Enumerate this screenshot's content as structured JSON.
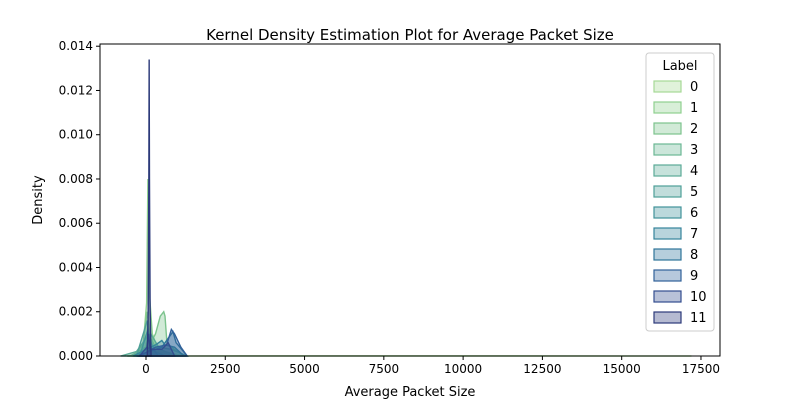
{
  "chart_data": {
    "type": "area",
    "title": "Kernel Density Estimation Plot for Average Packet Size",
    "xlabel": "Average Packet Size",
    "ylabel": "Density",
    "xlim": [
      -1450,
      18100
    ],
    "ylim": [
      0,
      0.0141
    ],
    "xticks": [
      0,
      2500,
      5000,
      7500,
      10000,
      12500,
      15000,
      17500
    ],
    "xtick_labels": [
      "0",
      "2500",
      "5000",
      "7500",
      "10000",
      "12500",
      "15000",
      "17500"
    ],
    "yticks": [
      0,
      0.002,
      0.004,
      0.006,
      0.008,
      0.01,
      0.012,
      0.014
    ],
    "ytick_labels": [
      "0.000",
      "0.002",
      "0.004",
      "0.006",
      "0.008",
      "0.010",
      "0.012",
      "0.014"
    ],
    "grid": false,
    "legend": {
      "title": "Label",
      "placement": "top-right"
    },
    "series": [
      {
        "name": "0",
        "color": "#a6d996",
        "points": [
          [
            -600,
            0
          ],
          [
            -200,
            0.0001
          ],
          [
            0,
            0.0004
          ],
          [
            60,
            0.0016
          ],
          [
            100,
            0.0012
          ],
          [
            300,
            0.0003
          ],
          [
            600,
            0.0002
          ],
          [
            1200,
            0
          ],
          [
            3000,
            1e-05
          ],
          [
            10000,
            1e-05
          ],
          [
            17200,
            0
          ]
        ]
      },
      {
        "name": "1",
        "color": "#8fd08f",
        "points": [
          [
            -400,
            0
          ],
          [
            -100,
            0.0003
          ],
          [
            20,
            0.0024
          ],
          [
            60,
            0.008
          ],
          [
            100,
            0.003
          ],
          [
            200,
            0.001
          ],
          [
            400,
            0.0002
          ],
          [
            900,
            0
          ]
        ]
      },
      {
        "name": "2",
        "color": "#7cc38d",
        "points": [
          [
            -400,
            0
          ],
          [
            -100,
            0.0005
          ],
          [
            40,
            0.002
          ],
          [
            150,
            0.0006
          ],
          [
            300,
            0.001
          ],
          [
            450,
            0.0018
          ],
          [
            560,
            0.002
          ],
          [
            600,
            0.0018
          ],
          [
            660,
            0.0006
          ],
          [
            800,
            0.0004
          ],
          [
            1200,
            0
          ]
        ]
      },
      {
        "name": "3",
        "color": "#6bb794",
        "points": [
          [
            -500,
            0
          ],
          [
            0,
            0.0004
          ],
          [
            100,
            0.0009
          ],
          [
            300,
            0.0004
          ],
          [
            600,
            0.0002
          ],
          [
            1000,
            0
          ]
        ]
      },
      {
        "name": "4",
        "color": "#5bab97",
        "points": [
          [
            -800,
            0
          ],
          [
            -300,
            0.0002
          ],
          [
            0,
            0.0008
          ],
          [
            150,
            0.001
          ],
          [
            400,
            0.0004
          ],
          [
            800,
            0.0003
          ],
          [
            1300,
            0
          ]
        ]
      },
      {
        "name": "5",
        "color": "#4e9f98",
        "points": [
          [
            -300,
            0
          ],
          [
            40,
            0.0016
          ],
          [
            100,
            0.0008
          ],
          [
            300,
            0.0002
          ],
          [
            600,
            0
          ]
        ]
      },
      {
        "name": "6",
        "color": "#40929a",
        "points": [
          [
            -200,
            0
          ],
          [
            60,
            0.0012
          ],
          [
            160,
            0.0004
          ],
          [
            400,
            0
          ]
        ]
      },
      {
        "name": "7",
        "color": "#35849b",
        "points": [
          [
            -400,
            0
          ],
          [
            0,
            0.0003
          ],
          [
            300,
            0.0005
          ],
          [
            500,
            0.0007
          ],
          [
            600,
            0.0005
          ],
          [
            900,
            0.0004
          ],
          [
            1200,
            0
          ]
        ]
      },
      {
        "name": "8",
        "color": "#2f749a",
        "points": [
          [
            -300,
            0
          ],
          [
            100,
            0.0002
          ],
          [
            500,
            0.0004
          ],
          [
            700,
            0.0008
          ],
          [
            850,
            0.0011
          ],
          [
            950,
            0.0006
          ],
          [
            1300,
            0
          ]
        ]
      },
      {
        "name": "9",
        "color": "#31619a",
        "points": [
          [
            -200,
            0
          ],
          [
            300,
            0.0004
          ],
          [
            650,
            0.0005
          ],
          [
            800,
            0.0012
          ],
          [
            900,
            0.001
          ],
          [
            1100,
            0.0004
          ],
          [
            1300,
            0
          ]
        ]
      },
      {
        "name": "10",
        "color": "#334d8f",
        "points": [
          [
            -200,
            0
          ],
          [
            30,
            0.0004
          ],
          [
            80,
            0.001
          ],
          [
            130,
            0.0003
          ],
          [
            500,
            0.0003
          ],
          [
            700,
            0.0006
          ],
          [
            900,
            0
          ]
        ]
      },
      {
        "name": "11",
        "color": "#2c3a7a",
        "points": [
          [
            40,
            0
          ],
          [
            70,
            0.002
          ],
          [
            90,
            0.008
          ],
          [
            100,
            0.0134
          ],
          [
            110,
            0.008
          ],
          [
            130,
            0.0022
          ],
          [
            160,
            0
          ]
        ]
      }
    ]
  }
}
